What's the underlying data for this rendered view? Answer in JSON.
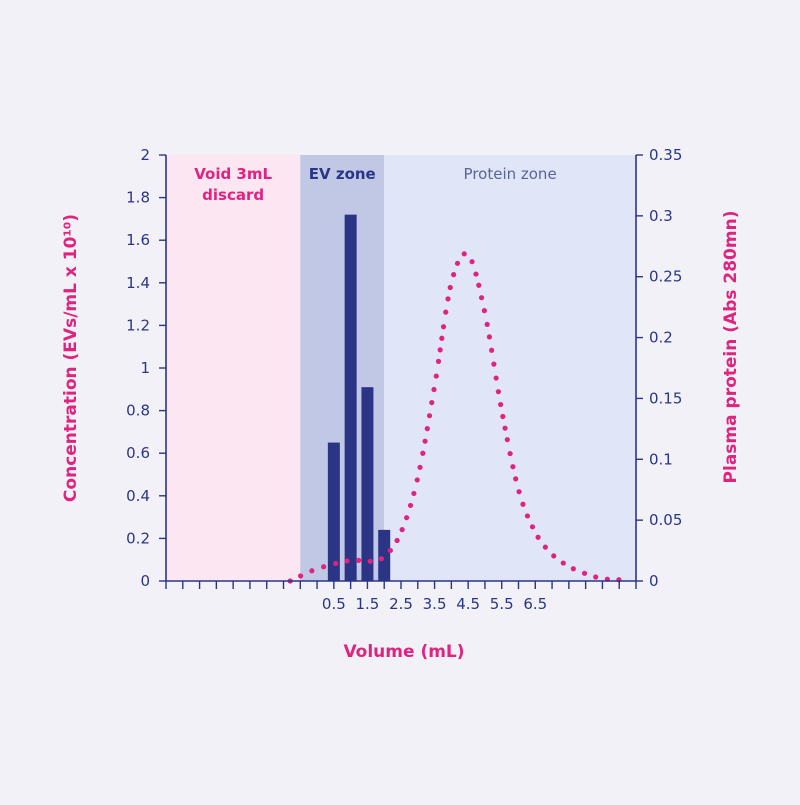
{
  "chart_data": {
    "type": "bar",
    "xlabel": "Volume (mL)",
    "ylabel": "Concentration (EVs/mL x 10¹⁰)",
    "y2label": "Plasma protein (Abs 280mn)",
    "ylim": [
      0,
      2
    ],
    "y2lim": [
      0,
      0.35
    ],
    "xlim": [
      -4.5,
      9.5
    ],
    "yticks": [
      "0",
      "0.2",
      "0.4",
      "0.6",
      "0.8",
      "1",
      "1.2",
      "1.4",
      "1.6",
      "1.8",
      "2"
    ],
    "y2ticks": [
      "0",
      "0.05",
      "0.1",
      "0.15",
      "0.2",
      "0.25",
      "0.3",
      "0.35"
    ],
    "xticklabels": [
      "0.5",
      "1.5",
      "2.5",
      "3.5",
      "4.5",
      "5.5",
      "6.5"
    ],
    "zones": [
      {
        "label": "Void 3mL\ndiscard",
        "from": -4.5,
        "to": -0.5,
        "color": "#fce6f2",
        "label_color": "#e0237f"
      },
      {
        "label": "EV zone",
        "from": -0.5,
        "to": 2.0,
        "color": "#c0c8e6",
        "label_color": "#2b3586"
      },
      {
        "label": "Protein zone",
        "from": 2.0,
        "to": 9.5,
        "color": "#e0e5f8",
        "label_color": "#5a6494"
      }
    ],
    "series": [
      {
        "type": "bar",
        "axis": "left",
        "color": "#2b3586",
        "x": [
          0.5,
          1.0,
          1.5,
          2.0
        ],
        "values": [
          0.65,
          1.72,
          0.91,
          0.24
        ]
      },
      {
        "type": "line",
        "axis": "right",
        "style": "dotted",
        "color": "#e0237f",
        "points": [
          [
            -0.8,
            0.0
          ],
          [
            0.0,
            0.01
          ],
          [
            1.0,
            0.017
          ],
          [
            1.5,
            0.016
          ],
          [
            2.0,
            0.02
          ],
          [
            2.5,
            0.04
          ],
          [
            3.0,
            0.085
          ],
          [
            3.5,
            0.16
          ],
          [
            4.0,
            0.245
          ],
          [
            4.5,
            0.268
          ],
          [
            5.0,
            0.22
          ],
          [
            5.5,
            0.14
          ],
          [
            6.0,
            0.075
          ],
          [
            6.5,
            0.04
          ],
          [
            7.0,
            0.022
          ],
          [
            7.5,
            0.012
          ],
          [
            8.0,
            0.006
          ],
          [
            8.5,
            0.002
          ],
          [
            9.0,
            0.001
          ]
        ]
      }
    ]
  }
}
